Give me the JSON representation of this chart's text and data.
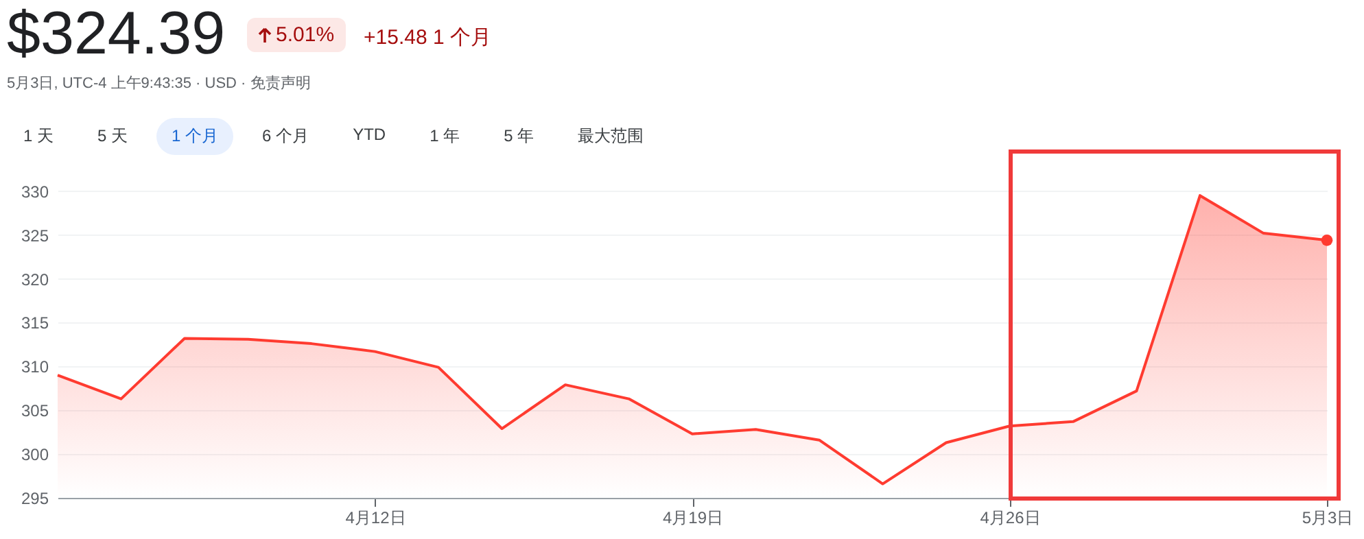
{
  "chart_data": {
    "type": "area",
    "title": "$324.39",
    "subtitle": "5月3日, UTC-4 上午9:43:35 · USD · 免责声明",
    "annotations": [
      "5.01%",
      "+15.48 1 个月",
      "1 天",
      "5 天",
      "1 个月",
      "6 个月",
      "YTD",
      "1 年",
      "5 年",
      "最大范围"
    ],
    "categories": [
      null,
      null,
      null,
      null,
      null,
      "4月12日",
      null,
      null,
      null,
      null,
      "4月19日",
      null,
      null,
      null,
      null,
      "4月26日",
      null,
      null,
      null,
      null,
      "5月3日"
    ],
    "values": [
      309.0,
      306.3,
      313.2,
      313.1,
      312.6,
      311.7,
      309.9,
      302.9,
      307.9,
      306.3,
      302.3,
      302.8,
      301.6,
      296.6,
      301.3,
      303.2,
      303.7,
      307.2,
      329.5,
      325.2,
      324.4
    ],
    "color": "#ff3b30",
    "ylim": [
      295,
      331
    ],
    "yticks": [
      295,
      300,
      305,
      310,
      315,
      320,
      325,
      330
    ],
    "grid": "y"
  }
}
